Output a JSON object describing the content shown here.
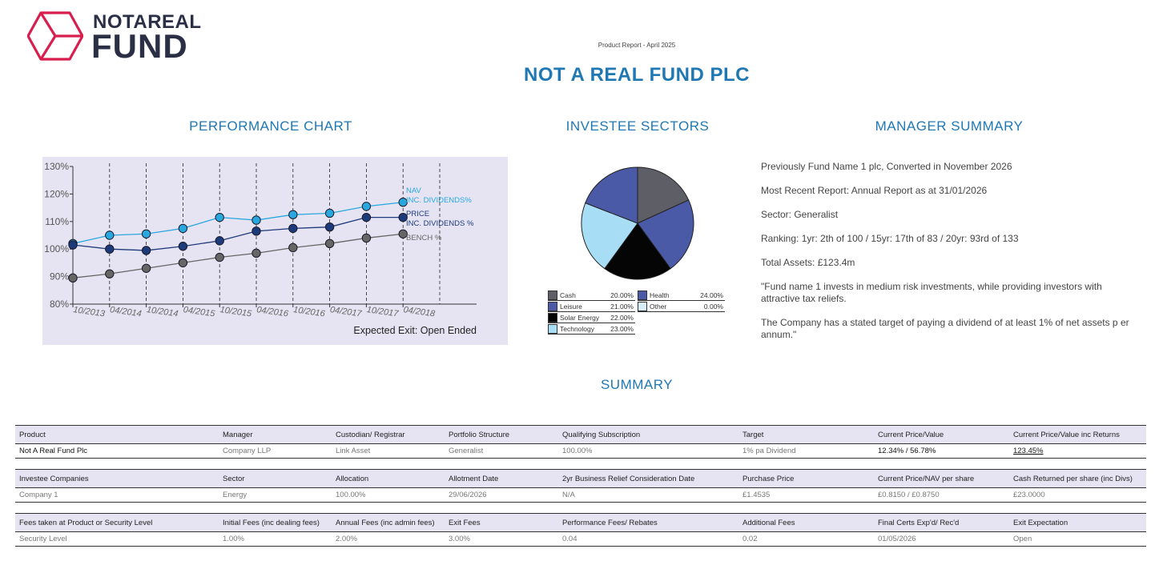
{
  "logo": {
    "top": "NOTAREAL",
    "bottom": "FUND",
    "brand_color": "#d81e4e",
    "text_color": "#2b2f45"
  },
  "header": {
    "report_date": "Product Report - April 2025",
    "fund_title": "NOT A REAL FUND PLC"
  },
  "sections": {
    "performance": "PERFORMANCE CHART",
    "sectors": "INVESTEE  SECTORS",
    "manager": "MANAGER SUMMARY",
    "summary": "SUMMARY"
  },
  "chart_data": [
    {
      "type": "line",
      "x": [
        "10/2013",
        "04/2014",
        "10/2014",
        "04/2015",
        "10/2015",
        "04/2016",
        "10/2016",
        "04/2017",
        "10/2017",
        "04/2018"
      ],
      "ylim": [
        80,
        130
      ],
      "yticks": [
        "80%",
        "90%",
        "100%",
        "110%",
        "120%",
        "130%"
      ],
      "series": [
        {
          "name": "NAV INC. DIVIDENDS%",
          "color": "#29a8e0",
          "values": [
            102,
            105,
            105.5,
            107.5,
            111.5,
            110.5,
            112.5,
            113,
            115.5,
            117
          ]
        },
        {
          "name": "PRICE INC. DIVIDENDS %",
          "color": "#1d3a7a",
          "values": [
            101.5,
            100,
            99.5,
            101,
            103,
            106.5,
            107.5,
            108,
            111.5,
            111.5
          ]
        },
        {
          "name": "BENCH %",
          "color": "#666666",
          "values": [
            89.5,
            91,
            93,
            95,
            97,
            98.5,
            100.5,
            102,
            104,
            105.5
          ]
        }
      ],
      "annotation": "Expected Exit: Open Ended",
      "grid": "vertical dashed",
      "legend": "inline right"
    },
    {
      "type": "pie",
      "slices": [
        {
          "label": "Cash",
          "value": 20.0,
          "display": "20.00%",
          "color": "#5e5e66"
        },
        {
          "label": "Health",
          "value": 24.0,
          "display": "24.00%",
          "color": "#4b5aa7"
        },
        {
          "label": "Solar Energy",
          "value": 22.0,
          "display": "22.00%",
          "color": "#050505"
        },
        {
          "label": "Technology",
          "value": 23.0,
          "display": "23.00%",
          "color": "#a8def5"
        },
        {
          "label": "Leisure",
          "value": 21.0,
          "display": "21.00%",
          "color": "#4b5aa7"
        },
        {
          "label": "Other",
          "value": 0.0,
          "display": "0.00%",
          "color": "#d8eef9"
        }
      ]
    }
  ],
  "manager_summary": {
    "line1": "Previously Fund Name 1 plc, Converted in November 2026",
    "line2": "Most Recent Report: Annual Report as at 31/01/2026",
    "line3": "Sector: Generalist",
    "line4": "Ranking: 1yr: 2th of 100 / 15yr: 17th of 83 / 20yr: 93rd of 133",
    "line5": "Total Assets: £123.4m",
    "quote1": "\"Fund name 1 invests in medium risk investments, while providing investors with attractive tax reliefs.",
    "quote2": "The Company has a stated target of paying a dividend of at least 1% of net assets p er annum.\""
  },
  "table1": {
    "headers": [
      "Product",
      "Manager",
      "Custodian/ Registrar",
      "Portfolio Structure",
      "Qualifying Subscription",
      "Target",
      "Current Price/Value",
      "Current Price/Value inc Returns"
    ],
    "row": [
      "Not A Real Fund Plc",
      "Company LLP",
      "Link Asset",
      "Generalist",
      "100.00%",
      "1% pa Dividend",
      "12.34% / 56.78%",
      "123.45%"
    ]
  },
  "table2": {
    "headers": [
      "Investee Companies",
      "Sector",
      "Allocation",
      "Allotment Date",
      "2yr Business Relief Consideration Date",
      "Purchase Price",
      "Current Price/NAV per share",
      "Cash Returned per share (inc Divs)"
    ],
    "row": [
      "Company 1",
      "Energy",
      "100.00%",
      "29/06/2026",
      "N/A",
      "£1.4535",
      "£0.8150 / £0.8750",
      "£23.0000"
    ]
  },
  "table3": {
    "headers": [
      "Fees taken at Product or Security Level",
      "Initial Fees (inc dealing fees)",
      "Annual Fees (inc admin fees)",
      "Exit Fees",
      "Performance Fees/ Rebates",
      "Additional Fees",
      "Final Certs Exp'd/ Rec'd",
      "Exit Expectation"
    ],
    "row": [
      "Security Level",
      "1.00%",
      "2.00%",
      "3.00%",
      "0.04",
      "0.02",
      "01/05/2026",
      "Open"
    ]
  }
}
